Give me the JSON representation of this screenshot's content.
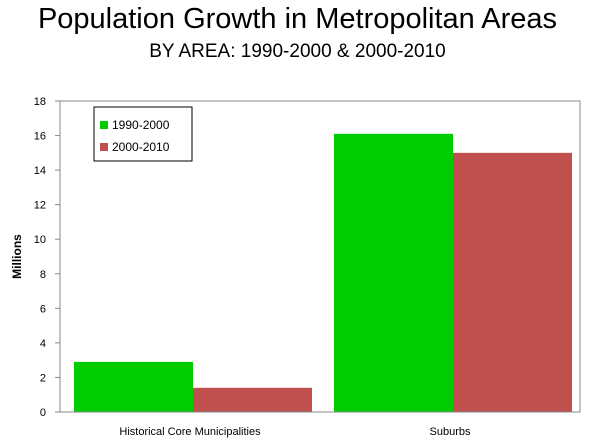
{
  "chart_data": {
    "type": "bar",
    "title": "Population Growth in Metropolitan Areas",
    "subtitle": "BY AREA: 1990-2000 & 2000-2010",
    "ylabel": "Millions",
    "xlabel": "",
    "categories": [
      "Historical Core Municipalities",
      "Suburbs"
    ],
    "series": [
      {
        "name": "1990-2000",
        "color": "#00cc00",
        "values": [
          2.9,
          16.1
        ]
      },
      {
        "name": "2000-2010",
        "color": "#c0504d",
        "values": [
          1.4,
          15.0
        ]
      }
    ],
    "ylim": [
      0,
      18
    ],
    "yticks": [
      0,
      2,
      4,
      6,
      8,
      10,
      12,
      14,
      16,
      18
    ],
    "grid": false,
    "legend_position": "top-left"
  }
}
